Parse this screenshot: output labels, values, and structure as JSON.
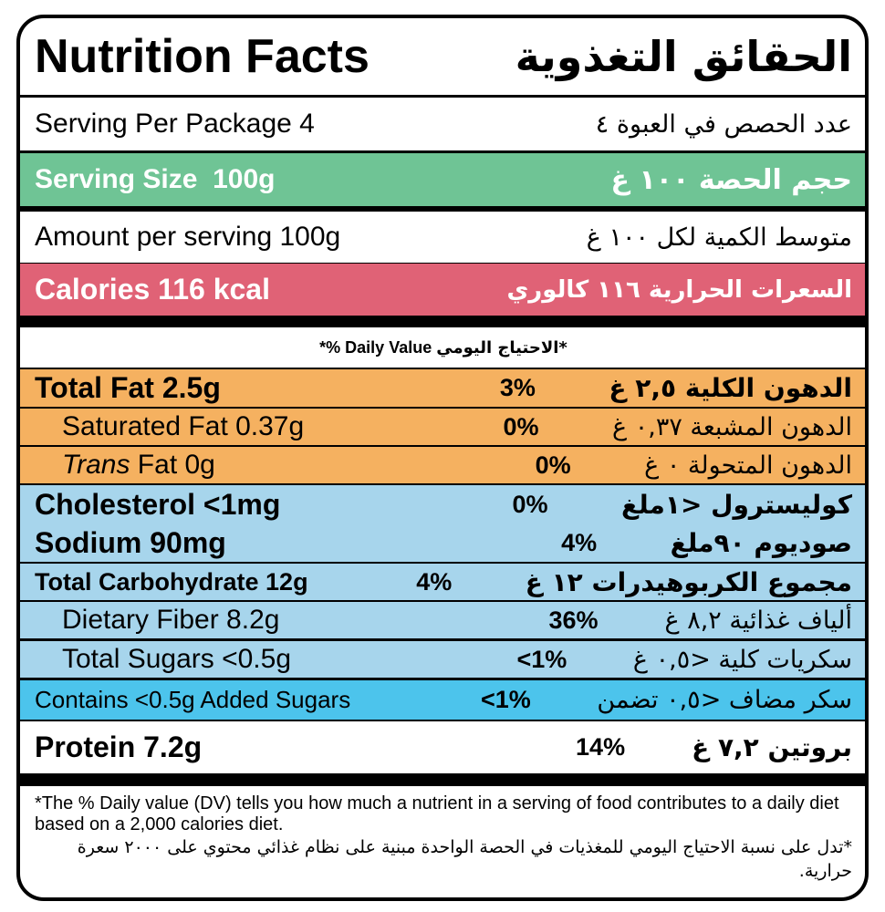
{
  "title": {
    "en": "Nutrition Facts",
    "ar": "الحقائق التغذوية"
  },
  "serving_per_package": {
    "en": "Serving Per Package 4",
    "ar": "عدد الحصص في العبوة ٤"
  },
  "serving_size": {
    "en": "Serving Size  100g",
    "ar": "حجم الحصة ١٠٠ غ"
  },
  "amount_per_serving": {
    "en": "Amount per serving 100g",
    "ar": "متوسط الكمية لكل ١٠٠ غ"
  },
  "calories": {
    "en": "Calories 116 kcal",
    "ar": "السعرات الحرارية ١١٦ كالوري"
  },
  "daily_value_header": {
    "en": "*% Daily Value",
    "ar": "*الاحتياج اليومي"
  },
  "nutrients": [
    {
      "name": "Total Fat 2.5g",
      "dv": "3%",
      "ar": "الدهون الكلية ٢,٥ غ"
    },
    {
      "name": "Saturated Fat 0.37g",
      "dv": "0%",
      "ar": "الدهون المشبعة ٠,٣٧ غ"
    },
    {
      "name_italic": "Trans",
      "name": " Fat 0g",
      "dv": "0%",
      "ar": "الدهون المتحولة ٠ غ"
    },
    {
      "name": "Cholesterol <1mg",
      "dv": "0%",
      "ar": "كوليسترول <١ملغ"
    },
    {
      "name": "Sodium 90mg",
      "dv": "4%",
      "ar": "صوديوم ٩٠ملغ"
    },
    {
      "name": "Total Carbohydrate 12g",
      "dv": "4%",
      "ar": "مجموع الكربوهيدرات ١٢ غ"
    },
    {
      "name": "Dietary Fiber 8.2g",
      "dv": "36%",
      "ar": "ألياف غذائية ٨,٢ غ"
    },
    {
      "name": "Total Sugars <0.5g",
      "dv": "<1%",
      "ar": "سكريات كلية <٠,٥ غ"
    },
    {
      "name": "Contains <0.5g Added Sugars",
      "dv": "<1%",
      "ar": "سكر مضاف <٠,٥ تضمن"
    },
    {
      "name": "Protein 7.2g",
      "dv": "14%",
      "ar": "بروتين ٧,٢ غ"
    }
  ],
  "footnote": {
    "en": "*The % Daily value (DV) tells you how much a nutrient in a serving of food contributes to a daily diet based on a 2,000 calories diet.",
    "ar": "*تدل على نسبة الاحتياج اليومي للمغذيات في الحصة الواحدة مبنية على نظام غذائي محتوي على ٢٠٠٠ سعرة حرارية."
  }
}
